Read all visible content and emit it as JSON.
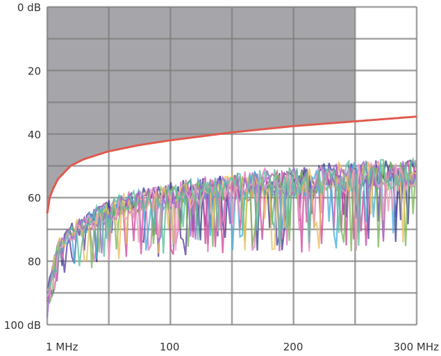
{
  "chart_data": {
    "type": "line",
    "title": "",
    "xlabel": "",
    "ylabel": "",
    "xlim": [
      1,
      300
    ],
    "ylim": [
      0,
      100
    ],
    "y_inverted": true,
    "grid": true,
    "y_ticks": [
      {
        "value": 0,
        "label": "0 dB"
      },
      {
        "value": 20,
        "label": "20"
      },
      {
        "value": 40,
        "label": "40"
      },
      {
        "value": 60,
        "label": "60"
      },
      {
        "value": 80,
        "label": "80"
      },
      {
        "value": 100,
        "label": "100 dB"
      }
    ],
    "x_ticks": [
      {
        "value": 1,
        "label": "1 MHz"
      },
      {
        "value": 100,
        "label": "100"
      },
      {
        "value": 200,
        "label": "200"
      },
      {
        "value": 300,
        "label": "300 MHz"
      }
    ],
    "forbidden_region": {
      "x_end": 250,
      "color": "#a6a6aa"
    },
    "limit_line": {
      "color": "#e05a4e",
      "x": [
        1,
        3,
        6,
        10,
        20,
        30,
        50,
        75,
        100,
        150,
        200,
        250,
        300
      ],
      "y": [
        65,
        60,
        57,
        54,
        50,
        48,
        45.5,
        43.5,
        42,
        39.5,
        37.5,
        36,
        34.5
      ]
    },
    "series_colors": [
      "#3b3f8f",
      "#5a3fa0",
      "#d04a9e",
      "#e07ab8",
      "#4ab0d8",
      "#7ab85a",
      "#e8c060",
      "#9e6ad0",
      "#f0a0c0",
      "#60c0a0"
    ],
    "noise_series": {
      "x": [
        1,
        10,
        20,
        30,
        50,
        75,
        100,
        150,
        200,
        250,
        300
      ],
      "top_y": [
        88,
        73,
        68,
        65,
        60,
        57,
        55,
        52,
        50,
        48,
        47
      ],
      "bottom_y": [
        99,
        85,
        83,
        82,
        80,
        79,
        78,
        77,
        77,
        76,
        75
      ]
    }
  }
}
